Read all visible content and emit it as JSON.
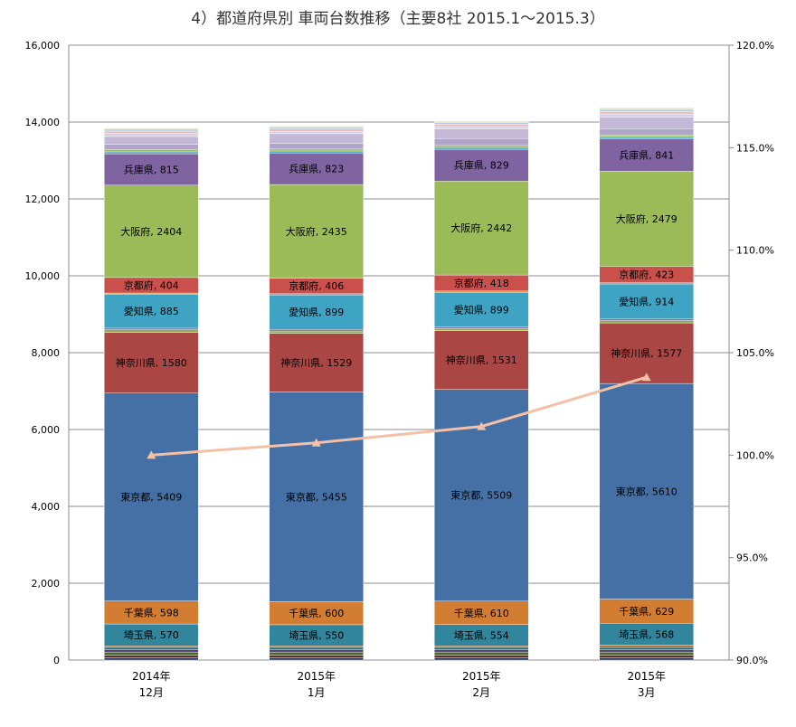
{
  "chart_data": {
    "type": "bar",
    "stacked": true,
    "title": "4）都道府県別 車両台数推移（主要8社 2015.1～2015.3）",
    "categories": [
      {
        "line1": "2014年",
        "line2": "12月"
      },
      {
        "line1": "2015年",
        "line2": "1月"
      },
      {
        "line1": "2015年",
        "line2": "2月"
      },
      {
        "line1": "2015年",
        "line2": "3月"
      }
    ],
    "y_left": {
      "min": 0,
      "max": 16000,
      "step": 2000,
      "tick_labels": [
        "0",
        "2,000",
        "4,000",
        "6,000",
        "8,000",
        "10,000",
        "12,000",
        "14,000",
        "16,000"
      ]
    },
    "y_right": {
      "min": 90,
      "max": 120,
      "step": 5,
      "tick_labels": [
        "90.0%",
        "95.0%",
        "100.0%",
        "105.0%",
        "110.0%",
        "115.0%",
        "120.0%"
      ]
    },
    "grid": true,
    "series": [
      {
        "id": "misc1",
        "values": [
          60,
          60,
          60,
          60
        ],
        "color": "#23395d",
        "labeled": false
      },
      {
        "id": "misc2",
        "values": [
          70,
          70,
          70,
          70
        ],
        "color": "#5d2e2a",
        "labeled": false
      },
      {
        "id": "misc3",
        "values": [
          80,
          80,
          80,
          80
        ],
        "color": "#4c6a2a",
        "labeled": false
      },
      {
        "id": "misc4",
        "values": [
          60,
          60,
          60,
          60
        ],
        "color": "#4a3a6a",
        "labeled": false
      },
      {
        "id": "misc5",
        "values": [
          60,
          60,
          60,
          60
        ],
        "color": "#1f6b7a",
        "labeled": false
      },
      {
        "id": "misc6",
        "values": [
          40,
          40,
          40,
          60
        ],
        "color": "#b5661f",
        "labeled": false
      },
      {
        "name": "埼玉県",
        "values": [
          570,
          550,
          554,
          568
        ],
        "color": "#31859c",
        "labeled": true
      },
      {
        "name": "千葉県",
        "values": [
          598,
          600,
          610,
          629
        ],
        "color": "#d27d31",
        "labeled": true
      },
      {
        "name": "東京都",
        "values": [
          5409,
          5455,
          5509,
          5610
        ],
        "color": "#4470a6",
        "labeled": true
      },
      {
        "name": "神奈川県",
        "values": [
          1580,
          1529,
          1531,
          1577
        ],
        "color": "#aa4643",
        "labeled": true
      },
      {
        "id": "misc7",
        "values": [
          70,
          60,
          60,
          60
        ],
        "color": "#8db04d",
        "labeled": false
      },
      {
        "id": "misc8",
        "values": [
          40,
          40,
          40,
          40
        ],
        "color": "#7a5f9a",
        "labeled": false
      },
      {
        "name": "愛知県",
        "values": [
          885,
          899,
          899,
          914
        ],
        "color": "#3fa3c4",
        "labeled": true
      },
      {
        "id": "misc9",
        "values": [
          30,
          30,
          30,
          30
        ],
        "color": "#e08a3c",
        "labeled": false
      },
      {
        "name": "京都府",
        "values": [
          404,
          406,
          418,
          423
        ],
        "color": "#c9504b",
        "labeled": true
      },
      {
        "name": "大阪府",
        "values": [
          2404,
          2435,
          2442,
          2479
        ],
        "color": "#9bbb59",
        "labeled": true
      },
      {
        "name": "兵庫県",
        "values": [
          815,
          823,
          829,
          841
        ],
        "color": "#8064a2",
        "labeled": true
      },
      {
        "id": "misc10",
        "values": [
          50,
          50,
          50,
          50
        ],
        "color": "#4bacc6",
        "labeled": false
      },
      {
        "id": "misc11",
        "values": [
          50,
          50,
          50,
          50
        ],
        "color": "#9bbb59",
        "labeled": false
      },
      {
        "id": "misc12",
        "values": [
          150,
          150,
          180,
          170
        ],
        "color": "#b0a5c8",
        "labeled": false
      },
      {
        "id": "misc13",
        "values": [
          200,
          250,
          250,
          300
        ],
        "color": "#c3b9d6",
        "labeled": false
      },
      {
        "id": "misc14",
        "values": [
          80,
          60,
          60,
          80
        ],
        "color": "#d7d0e2",
        "labeled": false
      },
      {
        "id": "misc15",
        "values": [
          60,
          60,
          60,
          60
        ],
        "color": "#e6bfbd",
        "labeled": false
      },
      {
        "id": "misc16",
        "values": [
          50,
          50,
          50,
          60
        ],
        "color": "#b8cce4",
        "labeled": false
      },
      {
        "id": "misc17",
        "values": [
          30,
          30,
          30,
          40
        ],
        "color": "#d9e3c1",
        "labeled": false
      }
    ],
    "line_series": {
      "axis": "right",
      "values": [
        100.0,
        100.6,
        101.4,
        103.8
      ],
      "color": "#f4c0a6"
    }
  }
}
